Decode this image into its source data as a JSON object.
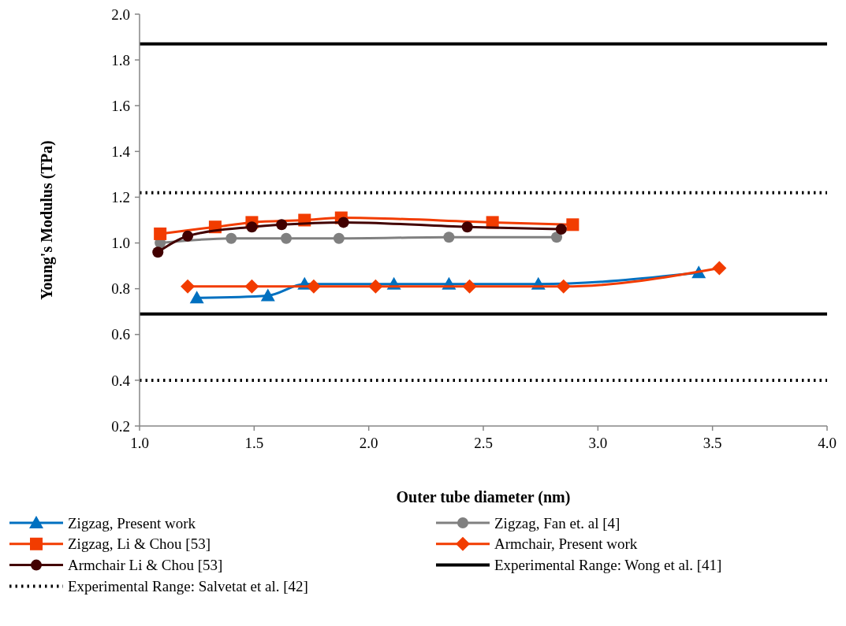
{
  "chart_data": {
    "type": "line",
    "xlabel": "Outer tube diameter (nm)",
    "ylabel": "Young's Modulus (TPa)",
    "xlim": [
      1.0,
      4.0
    ],
    "xticks": [
      {
        "value": 1,
        "label": "1.0"
      },
      {
        "value": 1.5,
        "label": "1.5"
      },
      {
        "value": 2,
        "label": "2.0"
      },
      {
        "value": 2.5,
        "label": "2.5"
      },
      {
        "value": 3,
        "label": "3.0"
      },
      {
        "value": 3.5,
        "label": "3.5"
      },
      {
        "value": 4,
        "label": "4.0"
      }
    ],
    "ylim": [
      0.2,
      2.0
    ],
    "yticks": [
      0.2,
      0.4,
      0.6,
      0.8,
      {
        "value": 1,
        "label": "1.0"
      },
      1.2,
      1.4,
      1.6,
      1.8,
      {
        "value": 2,
        "label": "2.0"
      }
    ],
    "grid": false,
    "legend": "bottom",
    "line_style": "solid",
    "series": [
      {
        "name": "Zigzag, Present work",
        "color": "#0070c0",
        "marker": "triangle",
        "x": [
          1.25,
          1.56,
          1.72,
          2.11,
          2.35,
          2.74,
          3.44
        ],
        "values": [
          0.76,
          0.77,
          0.82,
          0.82,
          0.82,
          0.82,
          0.87
        ]
      },
      {
        "name": "Zigzag, Fan et. al [4]",
        "color": "#808080",
        "marker": "circle",
        "x": [
          1.09,
          1.4,
          1.64,
          1.87,
          2.35,
          2.82
        ],
        "values": [
          1.0,
          1.02,
          1.02,
          1.02,
          1.025,
          1.025
        ]
      },
      {
        "name": "Zigzag, Li & Chou [53]",
        "color": "#f23c00",
        "marker": "square",
        "x": [
          1.09,
          1.33,
          1.49,
          1.72,
          1.88,
          2.54,
          2.89
        ],
        "values": [
          1.04,
          1.07,
          1.09,
          1.1,
          1.11,
          1.09,
          1.08
        ]
      },
      {
        "name": "Armchair, Present work",
        "color": "#f23c00",
        "marker": "diamond",
        "x": [
          1.21,
          1.49,
          1.76,
          2.03,
          2.44,
          2.85,
          3.53
        ],
        "values": [
          0.81,
          0.81,
          0.81,
          0.81,
          0.81,
          0.81,
          0.89
        ]
      },
      {
        "name": "Armchair Li & Chou [53]",
        "color": "#420000",
        "marker": "circle",
        "x": [
          1.08,
          1.21,
          1.49,
          1.62,
          1.89,
          2.43,
          2.84
        ],
        "values": [
          0.96,
          1.03,
          1.07,
          1.08,
          1.09,
          1.07,
          1.06
        ]
      }
    ],
    "ref_lines": [
      {
        "axis": "y",
        "value": 1.87,
        "label": "Experimental Range: Wong et al. [41]",
        "color": "#000000",
        "line_style": "solid"
      },
      {
        "axis": "y",
        "value": 0.69,
        "color": "#000000",
        "line_style": "solid"
      },
      {
        "axis": "y",
        "value": 1.22,
        "label": "Experimental Range: Salvetat et al. [42]",
        "color": "#000000",
        "line_style": "dotted"
      },
      {
        "axis": "y",
        "value": 0.4,
        "color": "#000000",
        "line_style": "dotted"
      }
    ]
  }
}
